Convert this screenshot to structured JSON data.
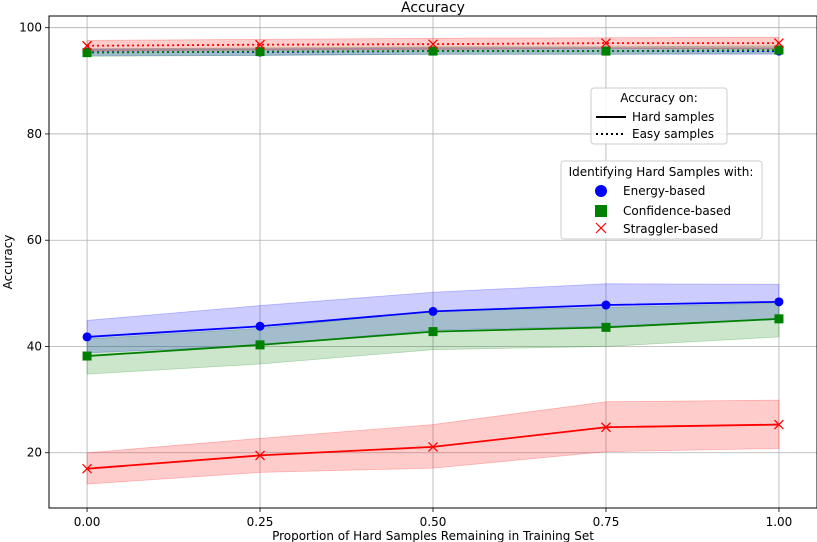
{
  "chart_data": {
    "type": "line",
    "title": "Accuracy",
    "xlabel": "Proportion of Hard Samples Remaining in Training Set",
    "ylabel": "Accuracy",
    "x": [
      0.0,
      0.25,
      0.5,
      0.75,
      1.0
    ],
    "x_tick_labels": [
      "0.00",
      "0.25",
      "0.50",
      "0.75",
      "1.00"
    ],
    "y_ticks": [
      20,
      40,
      60,
      80,
      100
    ],
    "y_tick_labels": [
      "20",
      "40",
      "60",
      "80",
      "100"
    ],
    "xlim": [
      -0.055,
      1.055
    ],
    "ylim": [
      9.6,
      102.2
    ],
    "grid": true,
    "series": [
      {
        "name": "Energy-based",
        "style": "hard",
        "color": "#0000ff",
        "marker": "circle",
        "values": [
          41.8,
          43.8,
          46.6,
          47.8,
          48.4
        ],
        "band_low": [
          38.8,
          40.2,
          43.1,
          43.8,
          45.1
        ],
        "band_high": [
          44.9,
          47.7,
          50.2,
          51.8,
          51.7
        ]
      },
      {
        "name": "Confidence-based",
        "style": "hard",
        "color": "#008000",
        "marker": "square",
        "values": [
          38.2,
          40.3,
          42.8,
          43.6,
          45.2
        ],
        "band_low": [
          34.8,
          36.7,
          39.4,
          40.0,
          41.8
        ],
        "band_high": [
          41.4,
          43.4,
          46.7,
          47.3,
          48.2
        ]
      },
      {
        "name": "Straggler-based",
        "style": "hard",
        "color": "#ff0000",
        "marker": "x",
        "values": [
          17.0,
          19.5,
          21.1,
          24.8,
          25.3
        ],
        "band_low": [
          14.1,
          16.3,
          17.1,
          20.2,
          20.8
        ],
        "band_high": [
          20.0,
          22.7,
          25.3,
          29.6,
          29.9
        ]
      },
      {
        "name": "Energy-based",
        "style": "easy",
        "color": "#0000ff",
        "marker": "circle",
        "values": [
          95.4,
          95.4,
          95.6,
          95.6,
          95.6
        ],
        "band_low": [
          94.8,
          94.8,
          95.0,
          95.0,
          95.0
        ],
        "band_high": [
          96.0,
          96.0,
          96.2,
          96.2,
          96.2
        ]
      },
      {
        "name": "Confidence-based",
        "style": "easy",
        "color": "#008000",
        "marker": "square",
        "values": [
          95.3,
          95.5,
          95.6,
          95.6,
          95.8
        ],
        "band_low": [
          94.6,
          94.8,
          95.0,
          95.0,
          95.2
        ],
        "band_high": [
          96.0,
          96.2,
          96.4,
          96.4,
          96.6
        ]
      },
      {
        "name": "Straggler-based",
        "style": "easy",
        "color": "#ff0000",
        "marker": "x",
        "values": [
          96.6,
          96.8,
          96.9,
          97.1,
          97.1
        ],
        "band_low": [
          95.6,
          95.8,
          95.9,
          96.1,
          96.0
        ],
        "band_high": [
          97.6,
          97.8,
          98.0,
          98.1,
          98.2
        ]
      }
    ],
    "legends": [
      {
        "title": "Accuracy on:",
        "placement": "upper-right",
        "entries": [
          {
            "label": "Hard samples",
            "kind": "solid-line"
          },
          {
            "label": "Easy samples",
            "kind": "dotted-line"
          }
        ]
      },
      {
        "title": "Identifying Hard Samples with:",
        "placement": "center-right",
        "entries": [
          {
            "label": "Energy-based",
            "kind": "circle",
            "color": "#0000ff"
          },
          {
            "label": "Confidence-based",
            "kind": "square",
            "color": "#008000"
          },
          {
            "label": "Straggler-based",
            "kind": "x",
            "color": "#ff0000"
          }
        ]
      }
    ]
  }
}
